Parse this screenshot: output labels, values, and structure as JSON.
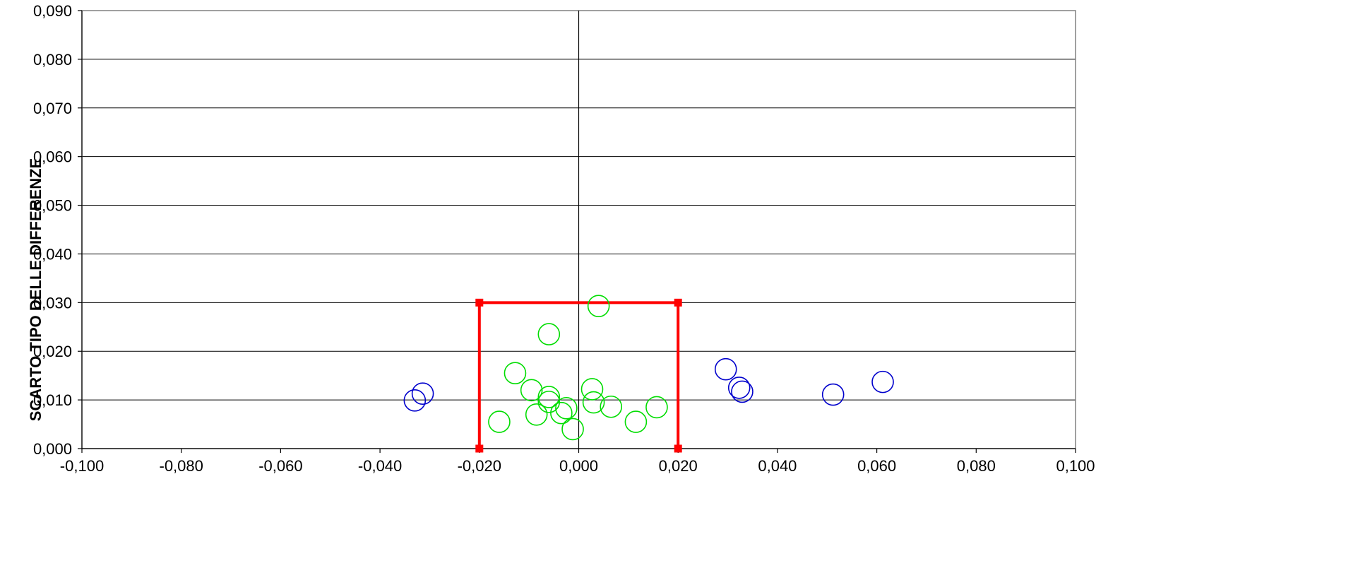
{
  "chart_data": {
    "type": "scatter",
    "title": "",
    "xlabel": "",
    "ylabel": "SCARTO TIPO DELLE DIFFERENZE",
    "xlim": [
      -0.1,
      0.1
    ],
    "ylim": [
      0,
      0.09
    ],
    "grid": "horizontal",
    "legend": "none",
    "x_ticks": [
      "-0,100",
      "-0,080",
      "-0,060",
      "-0,040",
      "-0,020",
      "0,000",
      "0,020",
      "0,040",
      "0,060",
      "0,080",
      "0,100"
    ],
    "y_ticks": [
      "0,000",
      "0,010",
      "0,020",
      "0,030",
      "0,040",
      "0,050",
      "0,060",
      "0,070",
      "0,080",
      "0,090"
    ],
    "series": [
      {
        "color": "#0000cc",
        "marker": "open-circle",
        "points": [
          {
            "x": -0.033,
            "y": 0.0099
          },
          {
            "x": -0.0314,
            "y": 0.0113
          },
          {
            "x": 0.0296,
            "y": 0.0163
          },
          {
            "x": 0.0323,
            "y": 0.0125
          },
          {
            "x": 0.0329,
            "y": 0.0117
          },
          {
            "x": 0.0512,
            "y": 0.0111
          },
          {
            "x": 0.0612,
            "y": 0.0137
          }
        ]
      },
      {
        "color": "#00dd00",
        "marker": "open-circle",
        "points": [
          {
            "x": 0.004,
            "y": 0.0293
          },
          {
            "x": -0.006,
            "y": 0.0235
          },
          {
            "x": -0.0128,
            "y": 0.0155
          },
          {
            "x": -0.0095,
            "y": 0.012
          },
          {
            "x": -0.006,
            "y": 0.0106
          },
          {
            "x": -0.006,
            "y": 0.0096
          },
          {
            "x": -0.0085,
            "y": 0.007
          },
          {
            "x": -0.0035,
            "y": 0.0073
          },
          {
            "x": -0.0025,
            "y": 0.0083
          },
          {
            "x": -0.0012,
            "y": 0.004
          },
          {
            "x": 0.0027,
            "y": 0.0122
          },
          {
            "x": 0.003,
            "y": 0.0095
          },
          {
            "x": 0.0065,
            "y": 0.0086
          },
          {
            "x": 0.0115,
            "y": 0.0055
          },
          {
            "x": 0.0157,
            "y": 0.0085
          },
          {
            "x": -0.016,
            "y": 0.0055
          }
        ]
      }
    ],
    "threshold_box": {
      "color": "#ff0000",
      "points": [
        {
          "x": -0.02,
          "y": 0.0
        },
        {
          "x": -0.02,
          "y": 0.03
        },
        {
          "x": 0.02,
          "y": 0.03
        },
        {
          "x": 0.02,
          "y": 0.0
        }
      ]
    }
  }
}
